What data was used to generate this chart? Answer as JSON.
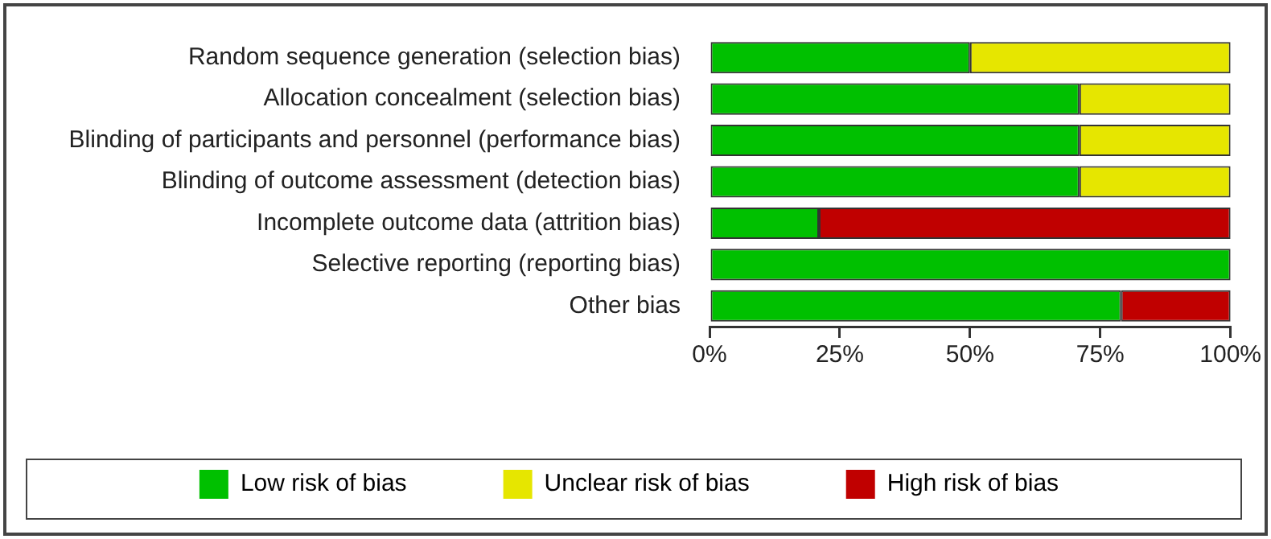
{
  "chart_data": {
    "type": "bar",
    "orientation": "horizontal",
    "stacked": true,
    "categories": [
      "Random sequence generation (selection bias)",
      "Allocation concealment (selection bias)",
      "Blinding of participants and personnel (performance bias)",
      "Blinding of outcome assessment (detection bias)",
      "Incomplete outcome data (attrition bias)",
      "Selective reporting (reporting bias)",
      "Other bias"
    ],
    "series": [
      {
        "name": "Low risk of bias",
        "color": "#00c000",
        "values": [
          50,
          71,
          71,
          71,
          21,
          100,
          79
        ]
      },
      {
        "name": "Unclear risk of bias",
        "color": "#e6e600",
        "values": [
          50,
          29,
          29,
          29,
          0,
          0,
          0
        ]
      },
      {
        "name": "High risk of bias",
        "color": "#c00000",
        "values": [
          0,
          0,
          0,
          0,
          79,
          0,
          21
        ]
      }
    ],
    "xlim": [
      0,
      100
    ],
    "xticks": [
      {
        "value": 0,
        "label": "0%"
      },
      {
        "value": 25,
        "label": "25%"
      },
      {
        "value": 50,
        "label": "50%"
      },
      {
        "value": 75,
        "label": "75%"
      },
      {
        "value": 100,
        "label": "100%"
      }
    ],
    "grid": false,
    "legend": "bottom"
  }
}
